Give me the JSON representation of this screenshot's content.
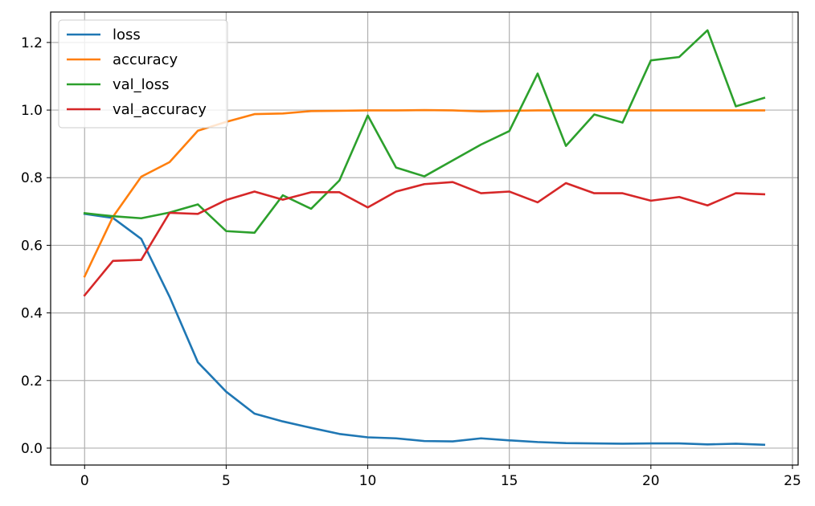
{
  "chart_data": {
    "type": "line",
    "title": "",
    "xlabel": "",
    "ylabel": "",
    "xlim": [
      -1.2,
      25.2
    ],
    "ylim": [
      -0.05,
      1.29
    ],
    "xticks": [
      0,
      5,
      10,
      15,
      20,
      25
    ],
    "yticks": [
      0.0,
      0.2,
      0.4,
      0.6,
      0.8,
      1.0,
      1.2
    ],
    "xtick_labels": [
      "0",
      "5",
      "10",
      "15",
      "20",
      "25"
    ],
    "ytick_labels": [
      "0.0",
      "0.2",
      "0.4",
      "0.6",
      "0.8",
      "1.0",
      "1.2"
    ],
    "grid": true,
    "legend_position": "top-left",
    "x": [
      0,
      1,
      2,
      3,
      4,
      5,
      6,
      7,
      8,
      9,
      10,
      11,
      12,
      13,
      14,
      15,
      16,
      17,
      18,
      19,
      20,
      21,
      22,
      23,
      24
    ],
    "series": [
      {
        "name": "loss",
        "color": "#1f77b4",
        "values": [
          0.693,
          0.681,
          0.619,
          0.448,
          0.254,
          0.167,
          0.102,
          0.079,
          0.06,
          0.042,
          0.032,
          0.029,
          0.021,
          0.02,
          0.029,
          0.023,
          0.018,
          0.015,
          0.014,
          0.013,
          0.014,
          0.014,
          0.011,
          0.013,
          0.01
        ]
      },
      {
        "name": "accuracy",
        "color": "#ff7f0e",
        "values": [
          0.508,
          0.684,
          0.803,
          0.846,
          0.939,
          0.965,
          0.988,
          0.99,
          0.997,
          0.998,
          0.999,
          0.999,
          1.0,
          0.999,
          0.996,
          0.998,
          0.999,
          0.999,
          0.999,
          0.999,
          0.999,
          0.999,
          0.999,
          0.999,
          0.999
        ]
      },
      {
        "name": "val_loss",
        "color": "#2ca02c",
        "values": [
          0.695,
          0.686,
          0.68,
          0.697,
          0.721,
          0.642,
          0.637,
          0.748,
          0.708,
          0.792,
          0.984,
          0.83,
          0.804,
          0.851,
          0.898,
          0.938,
          1.108,
          0.894,
          0.987,
          0.963,
          1.147,
          1.157,
          1.236,
          1.011,
          1.036
        ]
      },
      {
        "name": "val_accuracy",
        "color": "#d62728",
        "values": [
          0.452,
          0.554,
          0.557,
          0.696,
          0.693,
          0.734,
          0.759,
          0.735,
          0.757,
          0.757,
          0.712,
          0.759,
          0.781,
          0.787,
          0.754,
          0.759,
          0.727,
          0.784,
          0.754,
          0.754,
          0.732,
          0.743,
          0.718,
          0.754,
          0.751
        ]
      }
    ]
  }
}
